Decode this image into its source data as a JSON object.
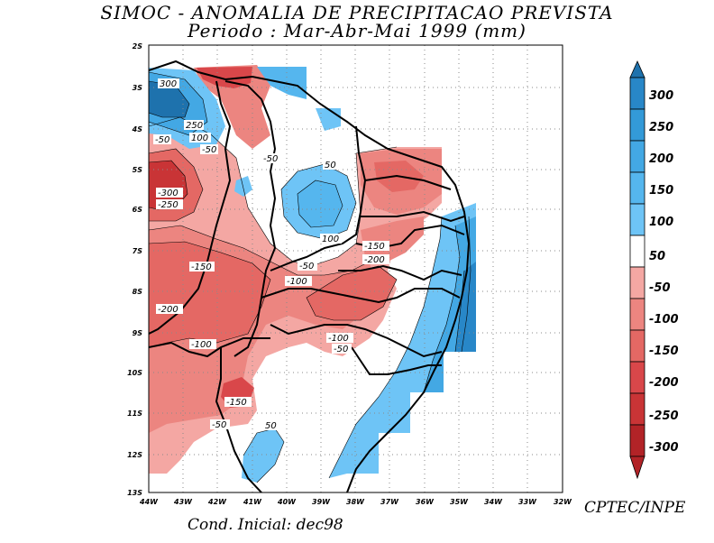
{
  "title": {
    "line1": "SIMOC -  ANOMALIA DE PRECIPITACAO PREVISTA",
    "line2": "Periodo : Mar-Abr-Mai 1999 (mm)"
  },
  "footer": {
    "initial_condition": "Cond. Inicial: dec98",
    "credit": "CPTEC/INPE"
  },
  "axes": {
    "lon_labels": [
      "44W",
      "43W",
      "42W",
      "41W",
      "40W",
      "39W",
      "38W",
      "37W",
      "36W",
      "35W",
      "34W",
      "33W",
      "32W"
    ],
    "lat_labels": [
      "2S",
      "3S",
      "4S",
      "5S",
      "6S",
      "7S",
      "8S",
      "9S",
      "10S",
      "11S",
      "12S",
      "13S"
    ]
  },
  "legend": {
    "labels": [
      "300",
      "250",
      "200",
      "150",
      "100",
      "50",
      "-50",
      "-100",
      "-150",
      "-200",
      "-250",
      "-300"
    ],
    "colors": {
      "c300": "#1e72ad",
      "c250": "#2887c8",
      "c200": "#339ad8",
      "c150": "#43a8e4",
      "c100": "#55b6ee",
      "c50": "#6ec4f6",
      "zero": "#ffffff",
      "m50": "#f4a7a3",
      "m100": "#ec8580",
      "m150": "#e46864",
      "m200": "#d9474a",
      "m250": "#c93436",
      "m300": "#b22327"
    }
  },
  "contour_labels": {
    "a": "300",
    "b": "250",
    "c": "-50",
    "d": "100",
    "e": "-50",
    "f": "-300",
    "g": "-250",
    "h": "-50",
    "i": "50",
    "j": "100",
    "k": "-150",
    "l": "-150",
    "m": "-200",
    "n": "-50",
    "o": "-100",
    "p": "-200",
    "q": "-100",
    "r": "-100",
    "s": "-50",
    "t": "-150",
    "u": "-50",
    "v": "50"
  }
}
